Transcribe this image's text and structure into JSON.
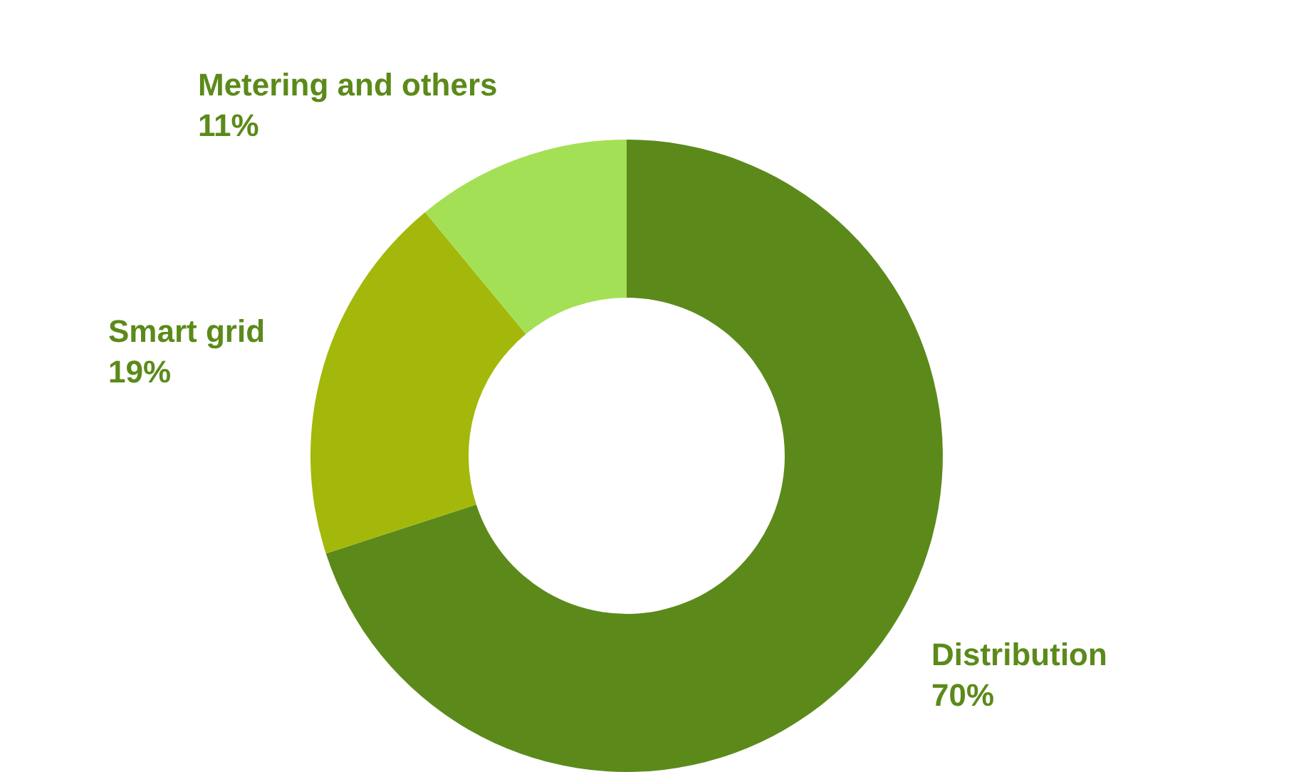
{
  "chart_data": {
    "type": "donut",
    "categories": [
      "Distribution",
      "Smart grid",
      "Metering and others"
    ],
    "values": [
      70,
      19,
      11
    ],
    "value_labels": [
      "70%",
      "19%",
      "11%"
    ],
    "colors": [
      "#5b8a1a",
      "#a3b80a",
      "#a4e055"
    ],
    "legend": false
  }
}
